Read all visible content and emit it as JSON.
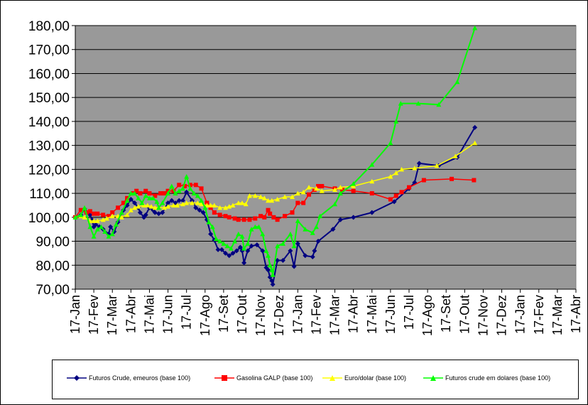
{
  "chart_data": {
    "type": "line",
    "title": "",
    "xlabel": "",
    "ylabel": "",
    "ylim": [
      70,
      180
    ],
    "yticks": [
      "70,00",
      "80,00",
      "90,00",
      "100,00",
      "110,00",
      "120,00",
      "130,00",
      "140,00",
      "150,00",
      "160,00",
      "170,00",
      "180,00"
    ],
    "x_ticks": [
      "17-Jan",
      "17-Fev",
      "17-Mar",
      "17-Abr",
      "17-Mai",
      "17-Jun",
      "17-Jul",
      "17-Ago",
      "17-Set",
      "17-Out",
      "17-Nov",
      "17-Dez",
      "17-Jan",
      "17-Fev",
      "17-Mar",
      "17-Abr",
      "17-Mai",
      "17-Jun",
      "17-Jul",
      "17-Ago",
      "17-Set",
      "17-Out",
      "17-Nov",
      "17-Dez",
      "17-Jan",
      "17-Fev",
      "17-Mar",
      "17-Abr"
    ],
    "background": "#999999",
    "grid": true,
    "legend_position": "bottom",
    "series": [
      {
        "name": "Futuros Crude, emeuros (base 100)",
        "color": "#000080",
        "marker": "diamond",
        "points": [
          [
            0,
            100
          ],
          [
            0.3,
            101
          ],
          [
            0.5,
            103.5
          ],
          [
            0.8,
            101
          ],
          [
            0.9,
            99
          ],
          [
            1.0,
            96
          ],
          [
            1.1,
            97
          ],
          [
            1.3,
            96
          ],
          [
            1.5,
            95
          ],
          [
            1.8,
            93
          ],
          [
            1.9,
            96
          ],
          [
            2.1,
            94
          ],
          [
            2.3,
            98
          ],
          [
            2.6,
            103
          ],
          [
            2.8,
            105
          ],
          [
            3.0,
            107.5
          ],
          [
            3.2,
            106
          ],
          [
            3.4,
            104
          ],
          [
            3.5,
            102
          ],
          [
            3.7,
            100
          ],
          [
            3.8,
            101
          ],
          [
            4.0,
            104
          ],
          [
            4.2,
            103
          ],
          [
            4.3,
            102
          ],
          [
            4.5,
            101.5
          ],
          [
            4.7,
            102
          ],
          [
            5.0,
            106
          ],
          [
            5.2,
            107
          ],
          [
            5.4,
            106
          ],
          [
            5.6,
            107
          ],
          [
            5.8,
            107
          ],
          [
            6.0,
            110.5
          ],
          [
            6.3,
            107
          ],
          [
            6.5,
            104
          ],
          [
            6.7,
            103
          ],
          [
            6.9,
            102
          ],
          [
            7.1,
            99
          ],
          [
            7.3,
            93
          ],
          [
            7.5,
            90.5
          ],
          [
            7.7,
            86.5
          ],
          [
            7.9,
            86.5
          ],
          [
            8.1,
            85
          ],
          [
            8.3,
            84
          ],
          [
            8.5,
            85
          ],
          [
            8.7,
            86
          ],
          [
            8.9,
            87.5
          ],
          [
            9.0,
            86
          ],
          [
            9.1,
            81
          ],
          [
            9.3,
            86
          ],
          [
            9.5,
            88
          ],
          [
            9.8,
            88.5
          ],
          [
            10.1,
            86
          ],
          [
            10.3,
            79
          ],
          [
            10.4,
            78
          ],
          [
            10.5,
            75
          ],
          [
            10.6,
            73.5
          ],
          [
            10.65,
            72
          ],
          [
            10.9,
            82
          ],
          [
            11.2,
            82
          ],
          [
            11.6,
            86
          ],
          [
            11.8,
            79.5
          ],
          [
            12.0,
            89
          ],
          [
            12.4,
            84
          ],
          [
            12.8,
            83.5
          ],
          [
            12.9,
            86
          ],
          [
            13.1,
            90
          ],
          [
            13.9,
            95
          ],
          [
            14.3,
            99
          ],
          [
            15.0,
            100
          ],
          [
            16.0,
            102
          ],
          [
            17.2,
            106.5
          ],
          [
            18.0,
            112
          ],
          [
            18.3,
            114.5
          ],
          [
            18.55,
            122.5
          ],
          [
            19.6,
            121.5
          ],
          [
            20.6,
            125
          ],
          [
            21.55,
            137.5
          ]
        ]
      },
      {
        "name": "Gasolina GALP (base 100)",
        "color": "#ff0000",
        "marker": "square",
        "points": [
          [
            0,
            100
          ],
          [
            0.3,
            103
          ],
          [
            0.6,
            102
          ],
          [
            0.8,
            102.5
          ],
          [
            1.0,
            101.5
          ],
          [
            1.2,
            101.5
          ],
          [
            1.5,
            101
          ],
          [
            1.8,
            100.5
          ],
          [
            2.0,
            102
          ],
          [
            2.3,
            104
          ],
          [
            2.6,
            106
          ],
          [
            2.8,
            108
          ],
          [
            3.1,
            110
          ],
          [
            3.3,
            111
          ],
          [
            3.5,
            110
          ],
          [
            3.8,
            111
          ],
          [
            4.0,
            110
          ],
          [
            4.3,
            109
          ],
          [
            4.6,
            110
          ],
          [
            4.8,
            110
          ],
          [
            5.0,
            111
          ],
          [
            5.3,
            111
          ],
          [
            5.6,
            113.5
          ],
          [
            5.9,
            113
          ],
          [
            6.2,
            113.5
          ],
          [
            6.5,
            113.5
          ],
          [
            6.8,
            112
          ],
          [
            7.1,
            106
          ],
          [
            7.3,
            104
          ],
          [
            7.5,
            102
          ],
          [
            7.8,
            101
          ],
          [
            8.1,
            100.5
          ],
          [
            8.3,
            100
          ],
          [
            8.6,
            99.5
          ],
          [
            8.8,
            99
          ],
          [
            9.1,
            99
          ],
          [
            9.4,
            99
          ],
          [
            9.7,
            99.5
          ],
          [
            10.0,
            100.5
          ],
          [
            10.2,
            100
          ],
          [
            10.4,
            103
          ],
          [
            10.5,
            101.5
          ],
          [
            10.7,
            100
          ],
          [
            10.9,
            99
          ],
          [
            11.3,
            100.5
          ],
          [
            11.7,
            102
          ],
          [
            12.0,
            106
          ],
          [
            12.3,
            106
          ],
          [
            12.6,
            109.5
          ],
          [
            12.9,
            111.5
          ],
          [
            13.1,
            113
          ],
          [
            13.3,
            113
          ],
          [
            14.0,
            112
          ],
          [
            14.4,
            111.5
          ],
          [
            15.0,
            111
          ],
          [
            16.0,
            110
          ],
          [
            17.0,
            107.5
          ],
          [
            17.3,
            109
          ],
          [
            17.6,
            110.5
          ],
          [
            18.0,
            112.5
          ],
          [
            18.8,
            115.5
          ],
          [
            20.3,
            116
          ],
          [
            21.5,
            115.5
          ]
        ]
      },
      {
        "name": "Euro/dolar (base 100)",
        "color": "#ffff00",
        "marker": "triangle",
        "points": [
          [
            0,
            100
          ],
          [
            0.3,
            100.5
          ],
          [
            0.5,
            100
          ],
          [
            0.8,
            98.5
          ],
          [
            1.0,
            98.5
          ],
          [
            1.2,
            98.5
          ],
          [
            1.5,
            99
          ],
          [
            1.7,
            99.5
          ],
          [
            2.0,
            100.5
          ],
          [
            2.3,
            100.5
          ],
          [
            2.5,
            100
          ],
          [
            2.8,
            101
          ],
          [
            3.0,
            103
          ],
          [
            3.2,
            104
          ],
          [
            3.4,
            104.5
          ],
          [
            3.7,
            105
          ],
          [
            3.9,
            105
          ],
          [
            4.1,
            104.5
          ],
          [
            4.3,
            104
          ],
          [
            4.5,
            104
          ],
          [
            4.8,
            104
          ],
          [
            5.0,
            104.5
          ],
          [
            5.3,
            105
          ],
          [
            5.5,
            105
          ],
          [
            5.8,
            105.5
          ],
          [
            6.0,
            106
          ],
          [
            6.3,
            106
          ],
          [
            6.6,
            106
          ],
          [
            6.8,
            105.5
          ],
          [
            7.1,
            105
          ],
          [
            7.3,
            105
          ],
          [
            7.5,
            105
          ],
          [
            7.8,
            104
          ],
          [
            8.1,
            104
          ],
          [
            8.3,
            104.5
          ],
          [
            8.5,
            105
          ],
          [
            8.8,
            106
          ],
          [
            9.0,
            106
          ],
          [
            9.2,
            105.5
          ],
          [
            9.4,
            109
          ],
          [
            9.7,
            109
          ],
          [
            10.0,
            108.5
          ],
          [
            10.2,
            108
          ],
          [
            10.4,
            107
          ],
          [
            10.6,
            107
          ],
          [
            10.9,
            107.5
          ],
          [
            11.3,
            108.5
          ],
          [
            11.7,
            108.5
          ],
          [
            12.0,
            110
          ],
          [
            12.3,
            110.5
          ],
          [
            12.6,
            112.5
          ],
          [
            13.0,
            112
          ],
          [
            13.3,
            111
          ],
          [
            14.0,
            111.5
          ],
          [
            14.3,
            112.5
          ],
          [
            15.0,
            113
          ],
          [
            16.0,
            115
          ],
          [
            17.0,
            117
          ],
          [
            17.3,
            118.5
          ],
          [
            17.6,
            120
          ],
          [
            18.3,
            120.5
          ],
          [
            19.5,
            121.5
          ],
          [
            20.5,
            125.5
          ],
          [
            21.55,
            131
          ]
        ]
      },
      {
        "name": "Futuros crude em dolares (base 100)",
        "color": "#00ff00",
        "marker": "triangle",
        "points": [
          [
            0,
            100
          ],
          [
            0.3,
            101
          ],
          [
            0.5,
            104
          ],
          [
            0.8,
            96
          ],
          [
            1.0,
            92
          ],
          [
            1.2,
            95
          ],
          [
            1.4,
            96
          ],
          [
            1.6,
            94
          ],
          [
            1.8,
            92
          ],
          [
            2.0,
            93
          ],
          [
            2.2,
            97
          ],
          [
            2.5,
            102
          ],
          [
            2.8,
            107
          ],
          [
            3.0,
            110
          ],
          [
            3.2,
            110
          ],
          [
            3.4,
            108
          ],
          [
            3.6,
            106
          ],
          [
            3.8,
            109
          ],
          [
            4.0,
            108
          ],
          [
            4.2,
            108
          ],
          [
            4.4,
            106.5
          ],
          [
            4.5,
            104
          ],
          [
            4.7,
            106
          ],
          [
            5.0,
            110
          ],
          [
            5.2,
            113
          ],
          [
            5.4,
            110
          ],
          [
            5.6,
            111
          ],
          [
            5.8,
            112
          ],
          [
            6.0,
            117
          ],
          [
            6.2,
            112
          ],
          [
            6.4,
            110
          ],
          [
            6.6,
            109
          ],
          [
            6.8,
            107
          ],
          [
            7.0,
            104
          ],
          [
            7.2,
            98
          ],
          [
            7.4,
            96
          ],
          [
            7.6,
            91
          ],
          [
            7.8,
            90
          ],
          [
            8.0,
            89
          ],
          [
            8.2,
            88
          ],
          [
            8.4,
            87
          ],
          [
            8.6,
            90
          ],
          [
            8.8,
            93
          ],
          [
            9.0,
            92
          ],
          [
            9.1,
            87
          ],
          [
            9.3,
            89
          ],
          [
            9.5,
            95
          ],
          [
            9.7,
            96
          ],
          [
            9.9,
            96
          ],
          [
            10.1,
            93
          ],
          [
            10.3,
            86
          ],
          [
            10.4,
            84
          ],
          [
            10.5,
            80
          ],
          [
            10.6,
            78
          ],
          [
            10.65,
            76
          ],
          [
            10.9,
            88
          ],
          [
            11.2,
            89
          ],
          [
            11.6,
            93
          ],
          [
            11.8,
            88
          ],
          [
            12.0,
            98.5
          ],
          [
            12.4,
            95
          ],
          [
            12.8,
            93.5
          ],
          [
            13.0,
            96
          ],
          [
            13.2,
            100.5
          ],
          [
            14.0,
            105.5
          ],
          [
            14.3,
            110
          ],
          [
            15.0,
            114
          ],
          [
            16.0,
            122
          ],
          [
            17.0,
            131
          ],
          [
            17.3,
            140
          ],
          [
            17.55,
            147.5
          ],
          [
            18.5,
            147.5
          ],
          [
            19.6,
            147
          ],
          [
            20.6,
            156.5
          ],
          [
            21.55,
            179
          ]
        ]
      }
    ]
  },
  "legend": [
    {
      "label": "Futuros Crude, emeuros (base 100)",
      "color": "#000080"
    },
    {
      "label": "Gasolina GALP (base 100)",
      "color": "#ff0000"
    },
    {
      "label": "Euro/dolar (base 100)",
      "color": "#ffff00"
    },
    {
      "label": "Futuros crude em dolares (base 100)",
      "color": "#00ff00"
    }
  ]
}
